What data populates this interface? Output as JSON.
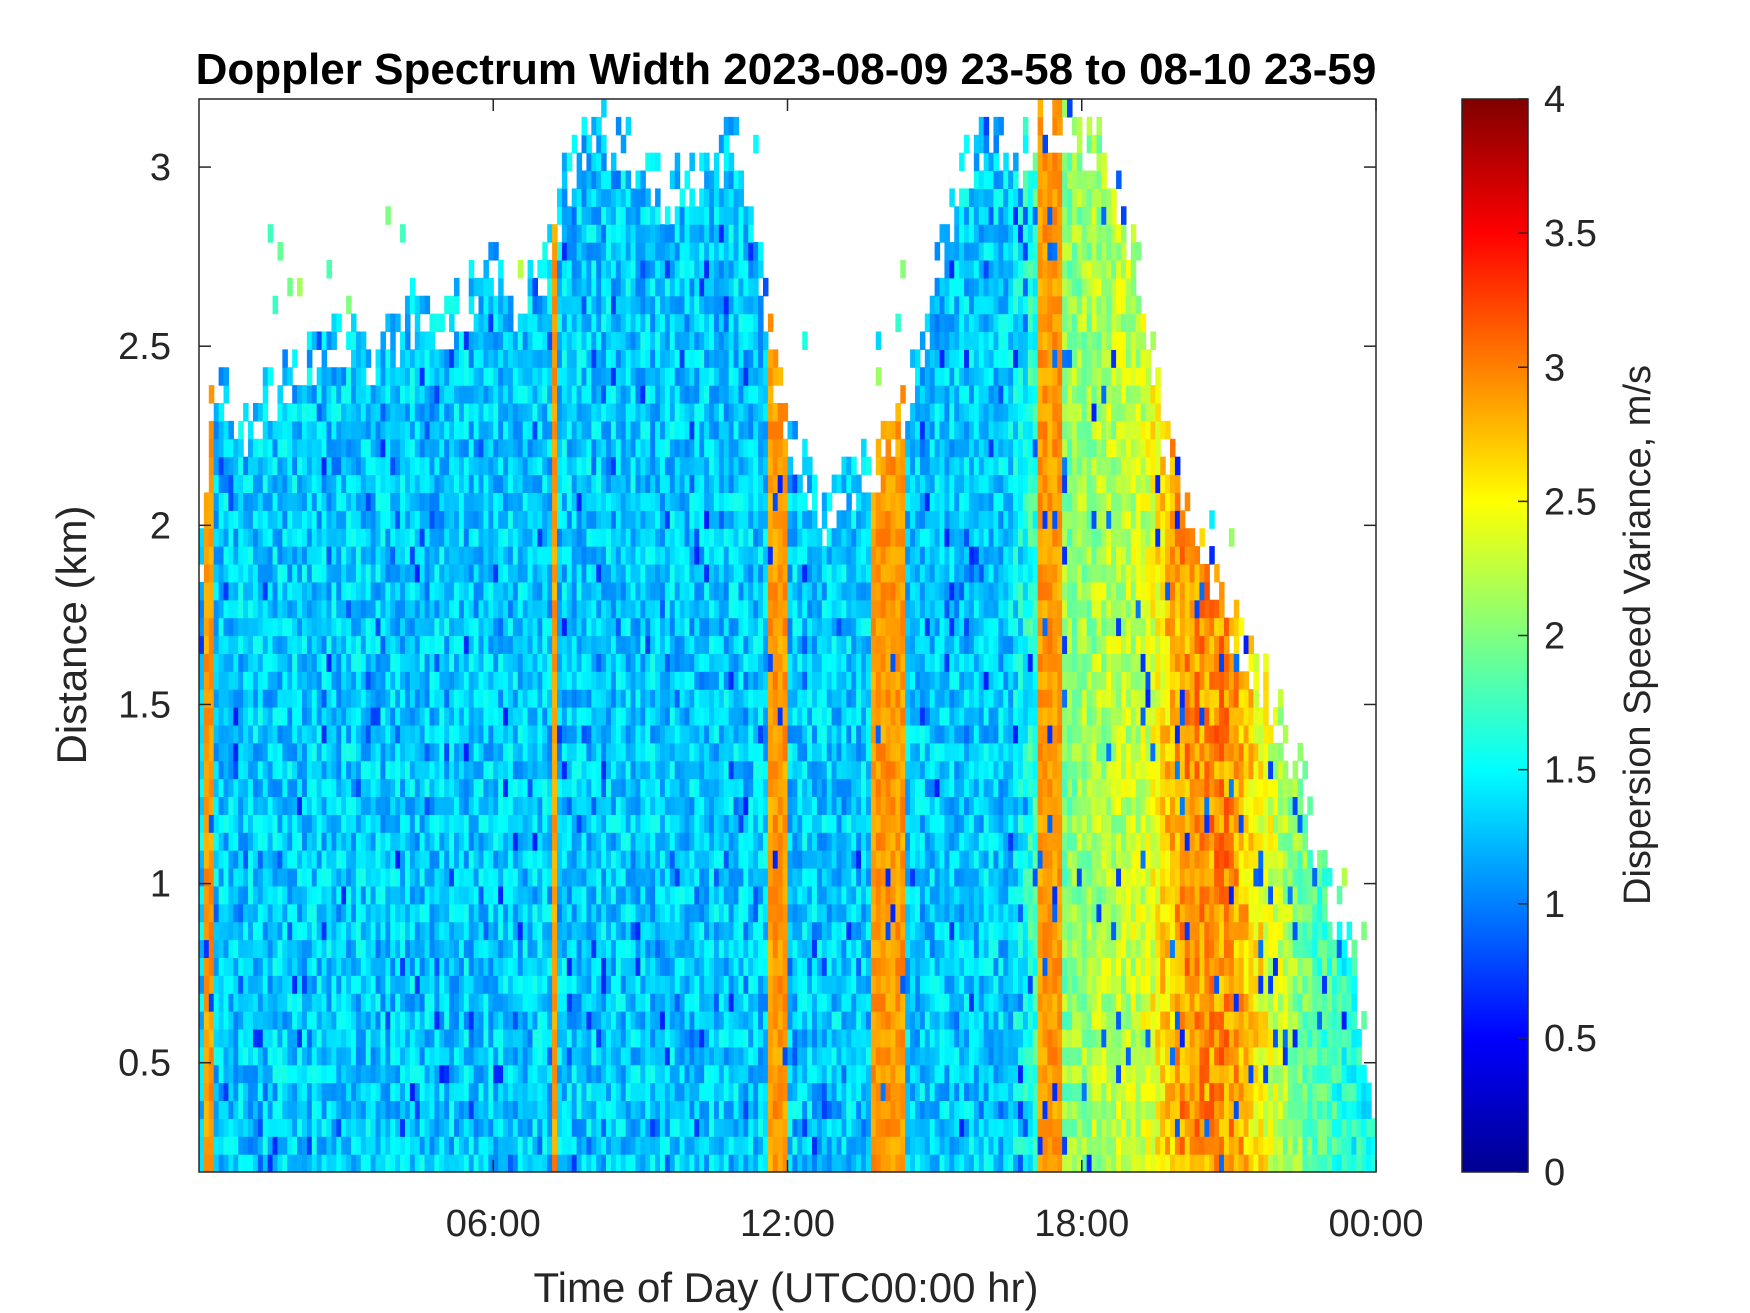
{
  "chart_data": {
    "type": "heatmap",
    "title": "Doppler Spectrum Width 2023-08-09 23-58 to 08-10 23-59",
    "xlabel": "Time of Day (UTC00:00 hr)",
    "ylabel": "Distance (km)",
    "x_unit": "hours since 00:00 UTC",
    "xlim": [
      0,
      24
    ],
    "ylim": [
      0.195,
      3.19
    ],
    "x_ticks": [
      {
        "value": 6,
        "label": "06:00"
      },
      {
        "value": 12,
        "label": "12:00"
      },
      {
        "value": 18,
        "label": "18:00"
      },
      {
        "value": 24,
        "label": "00:00"
      }
    ],
    "y_ticks": [
      {
        "value": 0.5,
        "label": "0.5"
      },
      {
        "value": 1,
        "label": "1"
      },
      {
        "value": 1.5,
        "label": "1.5"
      },
      {
        "value": 2,
        "label": "2"
      },
      {
        "value": 2.5,
        "label": "2.5"
      },
      {
        "value": 3,
        "label": "3"
      }
    ],
    "colorbar": {
      "label": "Dispersion Speed Variance, m/s",
      "colormap": "jet",
      "range": [
        0,
        4
      ],
      "ticks": [
        {
          "value": 0,
          "label": "0"
        },
        {
          "value": 0.5,
          "label": "0.5"
        },
        {
          "value": 1,
          "label": "1"
        },
        {
          "value": 1.5,
          "label": "1.5"
        },
        {
          "value": 2,
          "label": "2"
        },
        {
          "value": 2.5,
          "label": "2.5"
        },
        {
          "value": 3,
          "label": "3"
        },
        {
          "value": 3.5,
          "label": "3.5"
        },
        {
          "value": 4,
          "label": "4"
        }
      ]
    },
    "echo_top_profile": [
      [
        0.0,
        1.9
      ],
      [
        0.3,
        2.5
      ],
      [
        0.6,
        2.4
      ],
      [
        1.0,
        2.35
      ],
      [
        1.5,
        2.45
      ],
      [
        2.0,
        2.5
      ],
      [
        2.5,
        2.55
      ],
      [
        3.0,
        2.6
      ],
      [
        3.5,
        2.5
      ],
      [
        4.0,
        2.6
      ],
      [
        4.5,
        2.65
      ],
      [
        5.0,
        2.65
      ],
      [
        5.5,
        2.7
      ],
      [
        6.0,
        2.8
      ],
      [
        6.5,
        2.7
      ],
      [
        7.0,
        2.75
      ],
      [
        7.5,
        3.05
      ],
      [
        8.0,
        3.19
      ],
      [
        8.5,
        3.15
      ],
      [
        9.0,
        3.1
      ],
      [
        9.5,
        3.0
      ],
      [
        10.0,
        3.05
      ],
      [
        10.5,
        3.1
      ],
      [
        11.0,
        3.15
      ],
      [
        11.5,
        2.75
      ],
      [
        11.8,
        2.45
      ],
      [
        12.3,
        2.25
      ],
      [
        12.8,
        2.1
      ],
      [
        13.3,
        2.2
      ],
      [
        13.7,
        2.25
      ],
      [
        14.2,
        2.3
      ],
      [
        14.7,
        2.55
      ],
      [
        15.2,
        2.9
      ],
      [
        15.7,
        3.1
      ],
      [
        16.2,
        3.15
      ],
      [
        16.7,
        3.1
      ],
      [
        17.2,
        3.19
      ],
      [
        17.7,
        3.19
      ],
      [
        18.2,
        3.15
      ],
      [
        18.7,
        3.0
      ],
      [
        19.2,
        2.75
      ],
      [
        19.7,
        2.3
      ],
      [
        20.2,
        2.05
      ],
      [
        20.6,
        1.95
      ],
      [
        21.0,
        1.8
      ],
      [
        21.5,
        1.7
      ],
      [
        22.0,
        1.55
      ],
      [
        22.5,
        1.35
      ],
      [
        23.0,
        1.05
      ],
      [
        23.5,
        0.9
      ],
      [
        24.0,
        0.35
      ]
    ],
    "mean_width_profile": [
      [
        0,
        1.3
      ],
      [
        12,
        1.3
      ],
      [
        16.5,
        1.3
      ],
      [
        17.5,
        2.0
      ],
      [
        18.5,
        2.2
      ],
      [
        19.3,
        2.3
      ],
      [
        20.0,
        2.9
      ],
      [
        21.0,
        2.95
      ],
      [
        21.8,
        2.4
      ],
      [
        22.8,
        1.8
      ],
      [
        24,
        1.5
      ]
    ],
    "high_width_bands": [
      [
        0.12,
        0.32
      ],
      [
        7.25,
        7.3
      ],
      [
        11.65,
        12.0
      ],
      [
        13.7,
        14.45
      ],
      [
        17.15,
        17.6
      ],
      [
        20.25,
        20.3
      ]
    ]
  }
}
